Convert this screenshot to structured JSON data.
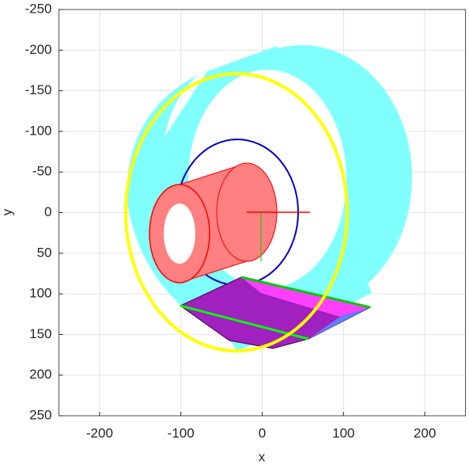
{
  "chart_data": {
    "type": "3d",
    "xlabel": "x",
    "ylabel": "y",
    "xlim": [
      -250,
      250
    ],
    "xticks": [
      -200,
      -100,
      0,
      100,
      200
    ],
    "ylim": [
      -250,
      250
    ],
    "yticks": [
      -250,
      -200,
      -150,
      -100,
      -50,
      0,
      50,
      100,
      150,
      200,
      250
    ],
    "y_reversed": true,
    "grid": true
  }
}
